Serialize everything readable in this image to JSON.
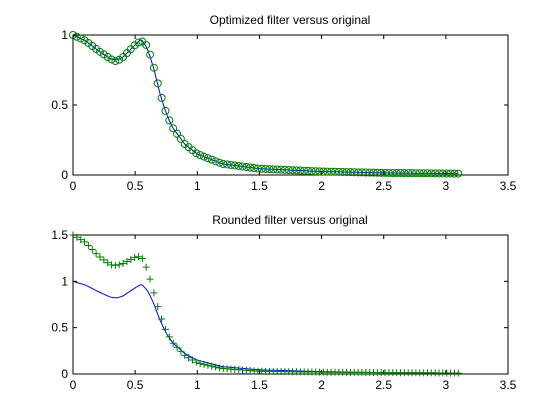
{
  "chart_data": [
    {
      "type": "line",
      "title": "Optimized filter versus original",
      "xlim": [
        0,
        3.5
      ],
      "ylim": [
        0,
        1
      ],
      "x_ticks": [
        "0",
        "0.5",
        "1",
        "1.5",
        "2",
        "2.5",
        "3",
        "3.5"
      ],
      "y_ticks": [
        "0",
        "0.5",
        "1"
      ],
      "grid": false,
      "series": [
        {
          "role": "original",
          "style": "line",
          "color": "#0000ff",
          "x": [
            0,
            0.1,
            0.2,
            0.3,
            0.35,
            0.4,
            0.5,
            0.55,
            0.6,
            0.65,
            0.7,
            0.75,
            0.8,
            0.9,
            1.0,
            1.2,
            1.5,
            2.0,
            2.5,
            3.1
          ],
          "y": [
            1.0,
            0.96,
            0.89,
            0.83,
            0.82,
            0.84,
            0.93,
            0.97,
            0.9,
            0.76,
            0.58,
            0.44,
            0.34,
            0.22,
            0.15,
            0.08,
            0.045,
            0.025,
            0.015,
            0.01
          ]
        },
        {
          "role": "optimized",
          "style": "circle",
          "color": "#008000",
          "x": [
            0,
            0.1,
            0.2,
            0.3,
            0.35,
            0.4,
            0.5,
            0.55,
            0.6,
            0.65,
            0.7,
            0.75,
            0.8,
            0.9,
            1.0,
            1.2,
            1.5,
            2.0,
            2.5,
            3.1
          ],
          "y": [
            1.0,
            0.96,
            0.89,
            0.83,
            0.81,
            0.84,
            0.93,
            0.96,
            0.92,
            0.77,
            0.59,
            0.44,
            0.34,
            0.22,
            0.15,
            0.08,
            0.045,
            0.025,
            0.015,
            0.01
          ]
        }
      ]
    },
    {
      "type": "line",
      "title": "Rounded filter versus original",
      "xlim": [
        0,
        3.5
      ],
      "ylim": [
        0,
        1.5
      ],
      "x_ticks": [
        "0",
        "0.5",
        "1",
        "1.5",
        "2",
        "2.5",
        "3",
        "3.5"
      ],
      "y_ticks": [
        "0",
        "0.5",
        "1",
        "1.5"
      ],
      "grid": false,
      "series": [
        {
          "role": "original",
          "style": "line",
          "color": "#0000ff",
          "x": [
            0,
            0.1,
            0.2,
            0.3,
            0.35,
            0.4,
            0.5,
            0.55,
            0.6,
            0.65,
            0.7,
            0.75,
            0.8,
            0.9,
            1.0,
            1.2,
            1.5,
            2.0,
            2.5,
            3.1
          ],
          "y": [
            1.0,
            0.96,
            0.89,
            0.83,
            0.82,
            0.84,
            0.93,
            0.97,
            0.9,
            0.76,
            0.58,
            0.44,
            0.34,
            0.22,
            0.15,
            0.08,
            0.045,
            0.025,
            0.015,
            0.01
          ]
        },
        {
          "role": "rounded",
          "style": "plus",
          "color": "#008000",
          "x": [
            0,
            0.1,
            0.2,
            0.3,
            0.35,
            0.4,
            0.5,
            0.55,
            0.6,
            0.65,
            0.7,
            0.75,
            0.8,
            0.9,
            1.0,
            1.2,
            1.5,
            2.0,
            2.5,
            3.1
          ],
          "y": [
            1.5,
            1.42,
            1.28,
            1.18,
            1.17,
            1.19,
            1.26,
            1.27,
            1.12,
            0.88,
            0.64,
            0.46,
            0.34,
            0.2,
            0.12,
            0.06,
            0.03,
            0.02,
            0.015,
            0.01
          ]
        }
      ]
    }
  ]
}
